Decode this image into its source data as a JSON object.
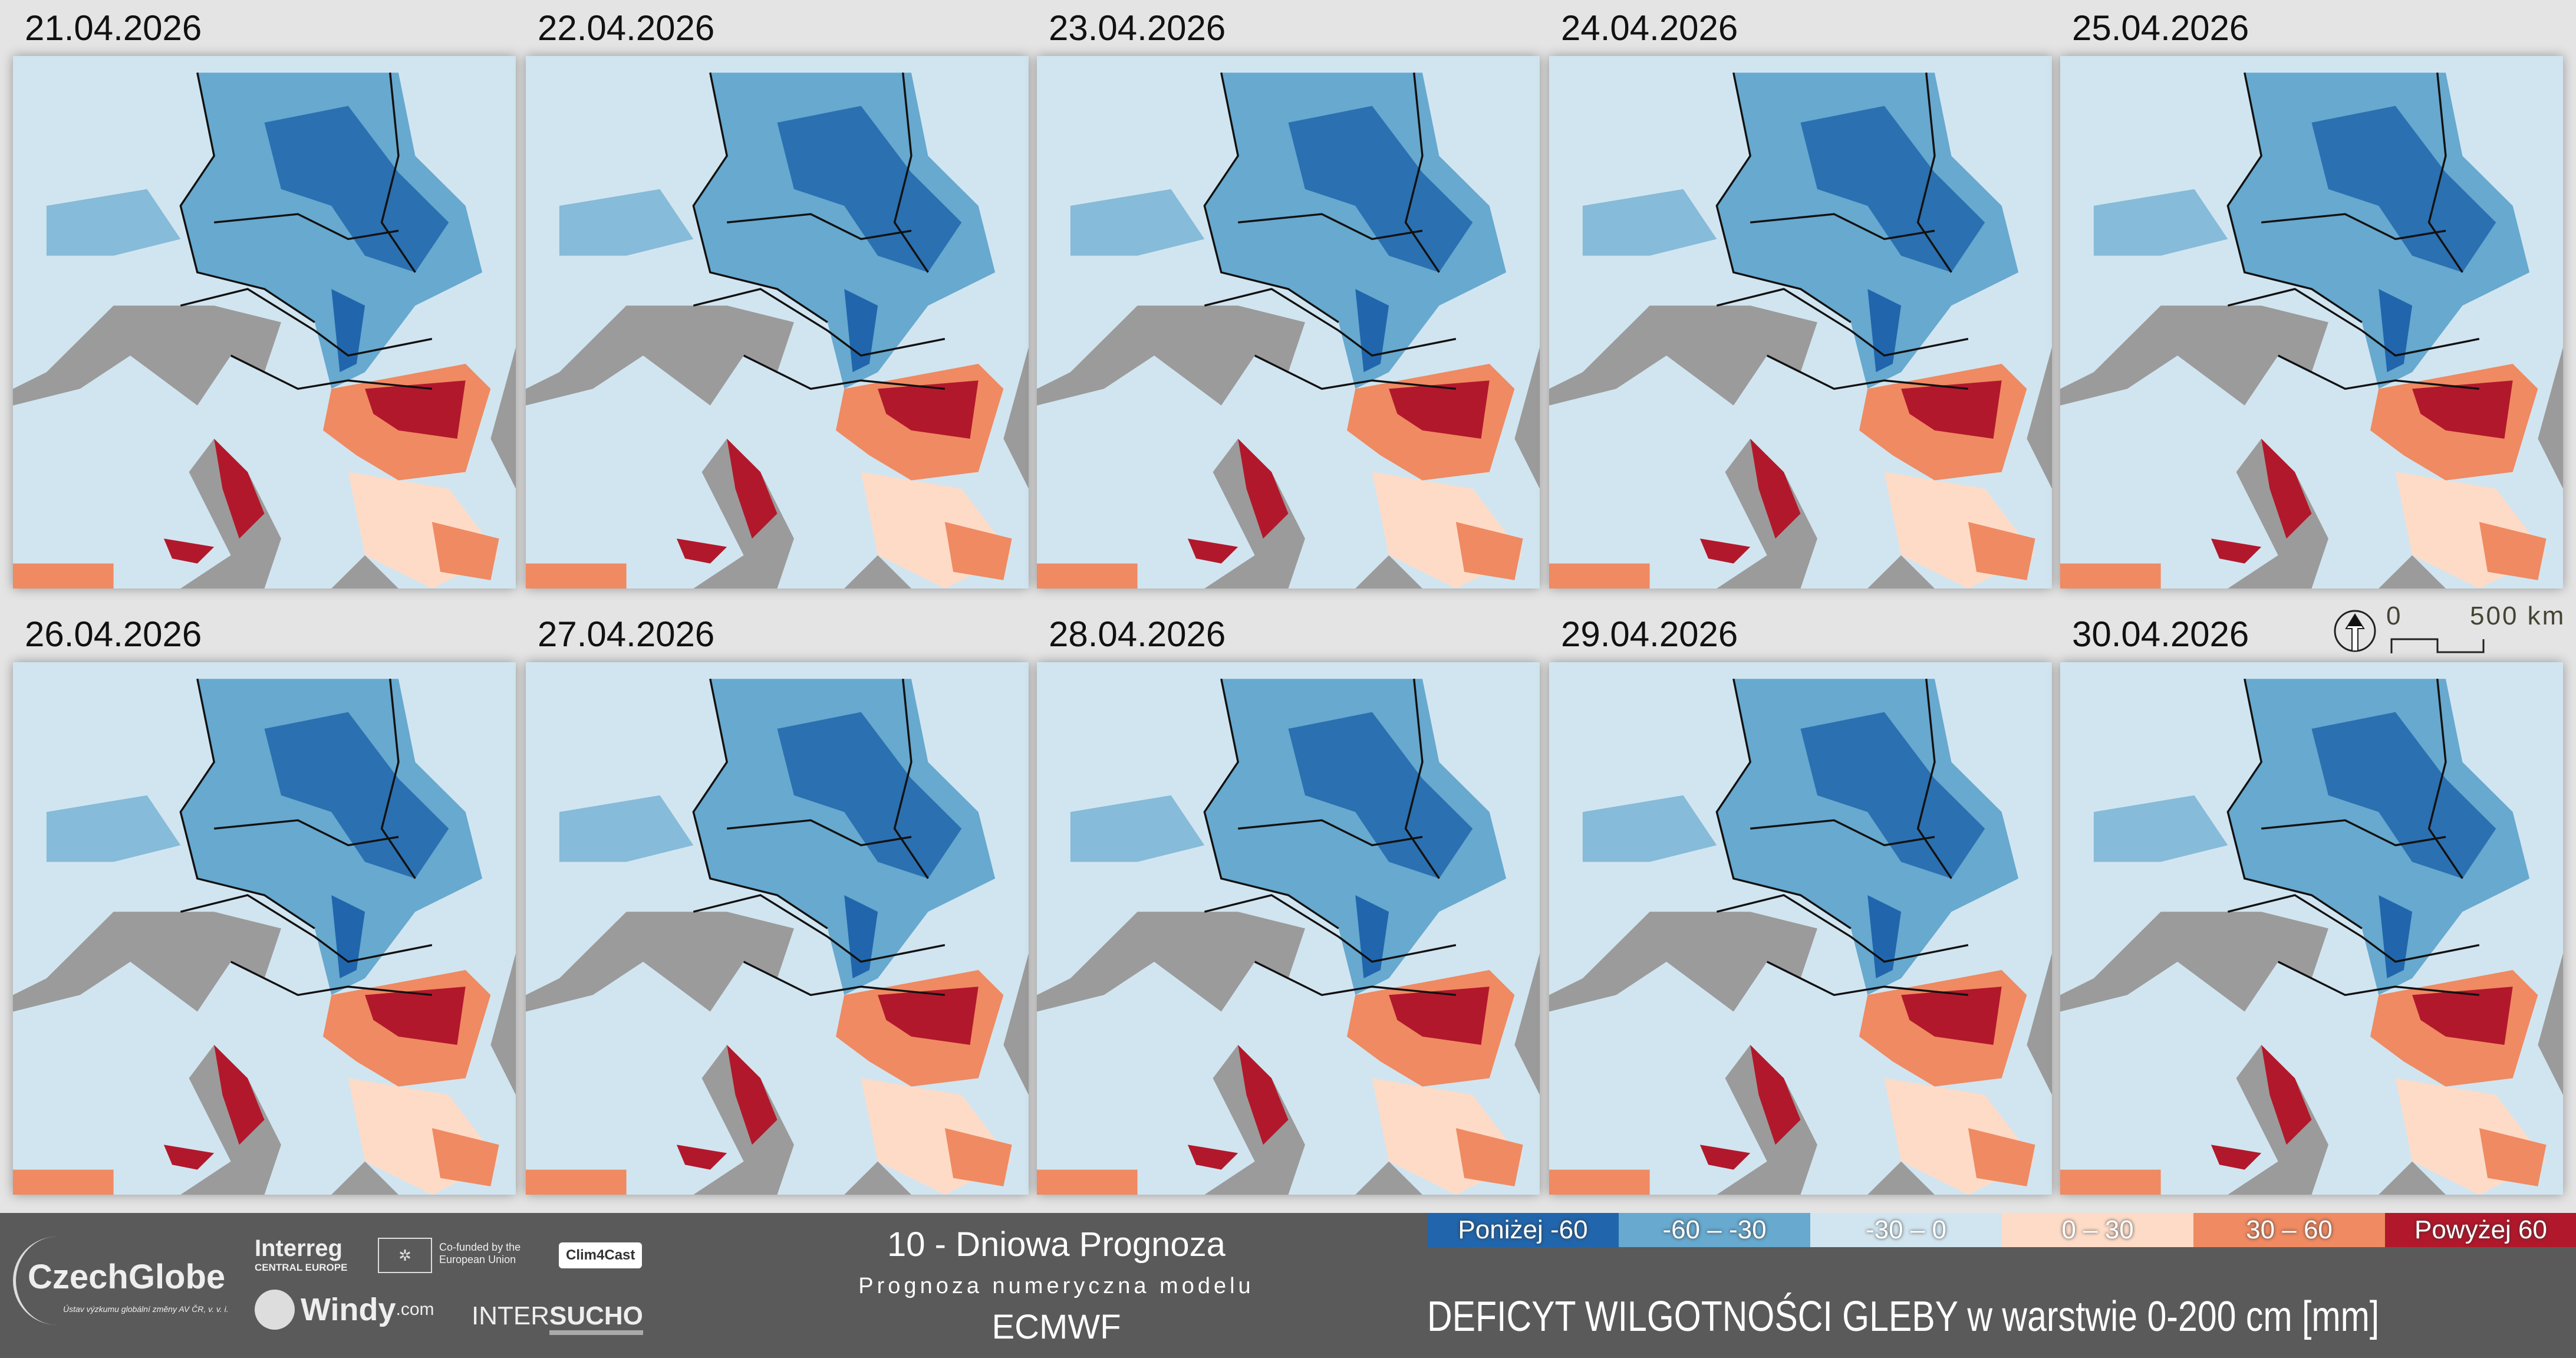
{
  "panels": [
    {
      "date": "21.04.2026"
    },
    {
      "date": "22.04.2026"
    },
    {
      "date": "23.04.2026"
    },
    {
      "date": "24.04.2026"
    },
    {
      "date": "25.04.2026"
    },
    {
      "date": "26.04.2026"
    },
    {
      "date": "27.04.2026"
    },
    {
      "date": "28.04.2026"
    },
    {
      "date": "29.04.2026"
    },
    {
      "date": "30.04.2026"
    }
  ],
  "scale_bar": {
    "zero": "0",
    "max": "500 km"
  },
  "footer": {
    "title": "10 - Dniowa Prognoza",
    "subtitle": "Prognoza numeryczna modelu",
    "model": "ECMWF",
    "variable": "DEFICYT WILGOTNOŚCI GLEBY w warstwie 0-200 cm [mm]",
    "logos": {
      "czechglobe": "CzechGlobe",
      "czechglobe_sub": "Ústav výzkumu globální změny AV ČR, v. v. i.",
      "interreg": "Interreg",
      "interreg_sub": "CENTRAL EUROPE",
      "eu": "Co-funded by the European Union",
      "clim4cast": "Clim4Cast",
      "windy": "Windy",
      "windy_com": ".com",
      "intersucho_a": "INTER",
      "intersucho_b": "SUCHO"
    }
  },
  "legend": [
    {
      "label": "Poniżej -60",
      "color": "#2166ac"
    },
    {
      "label": "-60 – -30",
      "color": "#67a9cf"
    },
    {
      "label": "-30 – 0",
      "color": "#d1e5f0"
    },
    {
      "label": "0 – 30",
      "color": "#fddbc7"
    },
    {
      "label": "30 – 60",
      "color": "#ef8a62"
    },
    {
      "label": "Powyżej 60",
      "color": "#b2182b"
    }
  ]
}
